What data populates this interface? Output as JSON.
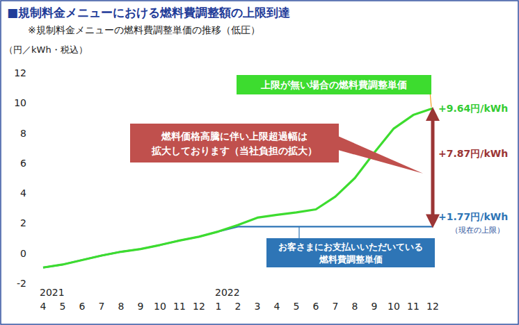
{
  "chart_data": {
    "type": "line",
    "title": "■規制料金メニューにおける燃料費調整額の上限到達",
    "subtitle": "※規制料金メニューの燃料費調整単価の推移（低圧）",
    "y_label": "（円／kWh・税込）",
    "categories": [
      "4",
      "5",
      "6",
      "7",
      "8",
      "9",
      "10",
      "11",
      "12",
      "1",
      "2",
      "3",
      "4",
      "5",
      "6",
      "7",
      "8",
      "9",
      "10",
      "11",
      "12"
    ],
    "year_labels": [
      {
        "index": 0,
        "label": "2021"
      },
      {
        "index": 9,
        "label": "2022"
      }
    ],
    "series": [
      {
        "name": "上限が無い場合の燃料費調整単価",
        "color": "#3ddc2f",
        "values": [
          -0.95,
          -0.75,
          -0.45,
          -0.15,
          0.1,
          0.28,
          0.55,
          0.85,
          1.1,
          1.45,
          1.88,
          2.37,
          2.56,
          2.72,
          2.92,
          3.77,
          5.0,
          6.7,
          8.3,
          9.2,
          9.64
        ]
      },
      {
        "name": "お客さまにお支払いいただいている\n燃料費調整単価",
        "color": "#2e75b6",
        "values": [
          -0.95,
          -0.75,
          -0.45,
          -0.15,
          0.1,
          0.28,
          0.55,
          0.85,
          1.1,
          1.45,
          1.77,
          1.77,
          1.77,
          1.77,
          1.77,
          1.77,
          1.77,
          1.77,
          1.77,
          1.77,
          1.77
        ]
      }
    ],
    "ylim": [
      -2,
      12
    ],
    "yticks": [
      -2,
      0,
      2,
      4,
      6,
      8,
      10,
      12
    ],
    "grid": false,
    "annotations": [
      {
        "text": "+9.64円/kWh",
        "value": 9.64,
        "color": "#33cc33"
      },
      {
        "text": "+7.87円/kWh",
        "value": 7.87,
        "color": "#9b3535"
      },
      {
        "text": "+1.77円/kWh",
        "value": 1.77,
        "color": "#2e75b6"
      }
    ],
    "cap_label": "（現在の上限）",
    "callout": "燃料価格高騰に伴い上限超過幅は\n拡大しております（当社負担の拡大）"
  }
}
